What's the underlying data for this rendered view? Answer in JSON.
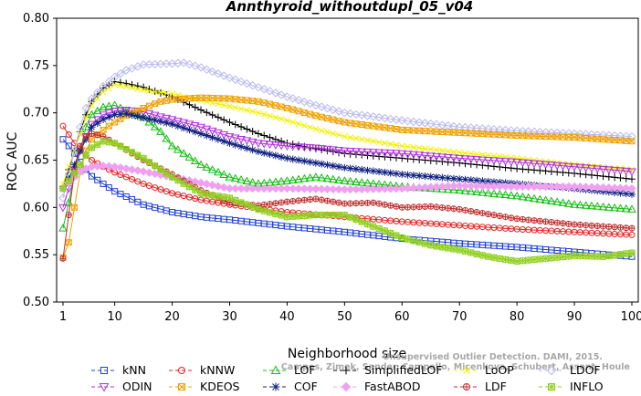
{
  "chart_data": {
    "type": "line",
    "title": "Annthyroid_withoutdupl_05_v04",
    "xlabel": "Neighborhood size",
    "ylabel": "ROC AUC",
    "xlim": [
      1,
      100
    ],
    "ylim": [
      0.5,
      0.8
    ],
    "xticks": [
      1,
      10,
      20,
      30,
      40,
      50,
      60,
      70,
      80,
      90,
      100
    ],
    "yticks": [
      "0.50",
      "0.55",
      "0.60",
      "0.65",
      "0.70",
      "0.75",
      "0.80"
    ],
    "grid": false,
    "legend_position": "bottom",
    "watermark": [
      "Unsupervised Outlier Detection. DAMI, 2015.",
      "Campos, Zimek, Sander, Campello, Micenkova, Schubert, Assent, Houle"
    ],
    "series": [
      {
        "name": "kNN",
        "color": "#1f3fd0",
        "marker": "square",
        "points": [
          [
            1,
            0.672
          ],
          [
            2,
            0.665
          ],
          [
            3,
            0.657
          ],
          [
            4,
            0.648
          ],
          [
            5,
            0.64
          ],
          [
            6,
            0.633
          ],
          [
            8,
            0.625
          ],
          [
            10,
            0.617
          ],
          [
            15,
            0.603
          ],
          [
            20,
            0.595
          ],
          [
            25,
            0.59
          ],
          [
            30,
            0.587
          ],
          [
            40,
            0.58
          ],
          [
            50,
            0.574
          ],
          [
            60,
            0.567
          ],
          [
            70,
            0.562
          ],
          [
            80,
            0.558
          ],
          [
            90,
            0.553
          ],
          [
            100,
            0.548
          ]
        ]
      },
      {
        "name": "kNNW",
        "color": "#e02020",
        "marker": "circle",
        "points": [
          [
            1,
            0.686
          ],
          [
            2,
            0.677
          ],
          [
            3,
            0.668
          ],
          [
            4,
            0.66
          ],
          [
            5,
            0.655
          ],
          [
            6,
            0.65
          ],
          [
            8,
            0.643
          ],
          [
            10,
            0.637
          ],
          [
            15,
            0.625
          ],
          [
            20,
            0.615
          ],
          [
            25,
            0.608
          ],
          [
            30,
            0.603
          ],
          [
            40,
            0.595
          ],
          [
            50,
            0.59
          ],
          [
            60,
            0.585
          ],
          [
            70,
            0.581
          ],
          [
            80,
            0.577
          ],
          [
            90,
            0.574
          ],
          [
            100,
            0.571
          ]
        ]
      },
      {
        "name": "LOF",
        "color": "#10c010",
        "marker": "triangle-up",
        "points": [
          [
            1,
            0.578
          ],
          [
            2,
            0.605
          ],
          [
            3,
            0.635
          ],
          [
            4,
            0.66
          ],
          [
            5,
            0.685
          ],
          [
            6,
            0.698
          ],
          [
            8,
            0.706
          ],
          [
            10,
            0.708
          ],
          [
            12,
            0.702
          ],
          [
            15,
            0.695
          ],
          [
            18,
            0.68
          ],
          [
            20,
            0.665
          ],
          [
            25,
            0.645
          ],
          [
            30,
            0.632
          ],
          [
            35,
            0.625
          ],
          [
            40,
            0.628
          ],
          [
            45,
            0.632
          ],
          [
            50,
            0.628
          ],
          [
            60,
            0.622
          ],
          [
            70,
            0.618
          ],
          [
            80,
            0.612
          ],
          [
            90,
            0.603
          ],
          [
            100,
            0.598
          ]
        ]
      },
      {
        "name": "SimplifiedLOF",
        "color": "#000000",
        "marker": "plus",
        "points": [
          [
            1,
            0.622
          ],
          [
            2,
            0.64
          ],
          [
            3,
            0.66
          ],
          [
            4,
            0.68
          ],
          [
            5,
            0.698
          ],
          [
            6,
            0.712
          ],
          [
            8,
            0.726
          ],
          [
            10,
            0.733
          ],
          [
            12,
            0.731
          ],
          [
            15,
            0.727
          ],
          [
            20,
            0.717
          ],
          [
            25,
            0.703
          ],
          [
            30,
            0.69
          ],
          [
            35,
            0.678
          ],
          [
            40,
            0.668
          ],
          [
            45,
            0.662
          ],
          [
            50,
            0.657
          ],
          [
            60,
            0.652
          ],
          [
            70,
            0.647
          ],
          [
            80,
            0.641
          ],
          [
            90,
            0.636
          ],
          [
            100,
            0.63
          ]
        ]
      },
      {
        "name": "LoOP",
        "color": "#f0f000",
        "marker": "x",
        "points": [
          [
            1,
            0.625
          ],
          [
            2,
            0.643
          ],
          [
            3,
            0.66
          ],
          [
            4,
            0.678
          ],
          [
            5,
            0.695
          ],
          [
            6,
            0.708
          ],
          [
            8,
            0.722
          ],
          [
            10,
            0.73
          ],
          [
            12,
            0.728
          ],
          [
            15,
            0.724
          ],
          [
            20,
            0.72
          ],
          [
            25,
            0.713
          ],
          [
            30,
            0.707
          ],
          [
            35,
            0.7
          ],
          [
            40,
            0.692
          ],
          [
            45,
            0.683
          ],
          [
            50,
            0.675
          ],
          [
            60,
            0.665
          ],
          [
            70,
            0.658
          ],
          [
            80,
            0.652
          ],
          [
            90,
            0.645
          ],
          [
            100,
            0.64
          ]
        ]
      },
      {
        "name": "LDOF",
        "color": "#b8b8f0",
        "marker": "diamond",
        "points": [
          [
            1,
            0.61
          ],
          [
            2,
            0.635
          ],
          [
            3,
            0.66
          ],
          [
            4,
            0.685
          ],
          [
            5,
            0.705
          ],
          [
            6,
            0.715
          ],
          [
            8,
            0.728
          ],
          [
            10,
            0.738
          ],
          [
            12,
            0.745
          ],
          [
            15,
            0.751
          ],
          [
            20,
            0.752
          ],
          [
            22,
            0.753
          ],
          [
            25,
            0.748
          ],
          [
            30,
            0.737
          ],
          [
            35,
            0.727
          ],
          [
            40,
            0.717
          ],
          [
            45,
            0.708
          ],
          [
            50,
            0.7
          ],
          [
            60,
            0.692
          ],
          [
            70,
            0.685
          ],
          [
            80,
            0.681
          ],
          [
            90,
            0.678
          ],
          [
            100,
            0.675
          ]
        ]
      },
      {
        "name": "ODIN",
        "color": "#b030e0",
        "marker": "triangle-down",
        "points": [
          [
            1,
            0.6
          ],
          [
            2,
            0.62
          ],
          [
            3,
            0.64
          ],
          [
            4,
            0.66
          ],
          [
            5,
            0.675
          ],
          [
            6,
            0.688
          ],
          [
            8,
            0.698
          ],
          [
            10,
            0.702
          ],
          [
            12,
            0.703
          ],
          [
            15,
            0.701
          ],
          [
            18,
            0.696
          ],
          [
            20,
            0.693
          ],
          [
            25,
            0.685
          ],
          [
            30,
            0.675
          ],
          [
            35,
            0.668
          ],
          [
            40,
            0.665
          ],
          [
            45,
            0.663
          ],
          [
            50,
            0.66
          ],
          [
            60,
            0.657
          ],
          [
            70,
            0.652
          ],
          [
            80,
            0.648
          ],
          [
            90,
            0.643
          ],
          [
            100,
            0.638
          ]
        ]
      },
      {
        "name": "KDEOS",
        "color": "#f0a000",
        "marker": "square-x",
        "points": [
          [
            1,
            0.547
          ],
          [
            2,
            0.563
          ],
          [
            3,
            0.6
          ],
          [
            4,
            0.638
          ],
          [
            5,
            0.66
          ],
          [
            6,
            0.672
          ],
          [
            8,
            0.682
          ],
          [
            10,
            0.69
          ],
          [
            12,
            0.697
          ],
          [
            15,
            0.705
          ],
          [
            18,
            0.712
          ],
          [
            20,
            0.714
          ],
          [
            25,
            0.716
          ],
          [
            30,
            0.715
          ],
          [
            35,
            0.712
          ],
          [
            40,
            0.705
          ],
          [
            45,
            0.697
          ],
          [
            50,
            0.69
          ],
          [
            60,
            0.682
          ],
          [
            70,
            0.679
          ],
          [
            80,
            0.676
          ],
          [
            90,
            0.674
          ],
          [
            100,
            0.67
          ]
        ]
      },
      {
        "name": "COF",
        "color": "#102080",
        "marker": "asterisk",
        "points": [
          [
            1,
            0.62
          ],
          [
            2,
            0.63
          ],
          [
            3,
            0.645
          ],
          [
            4,
            0.66
          ],
          [
            5,
            0.672
          ],
          [
            6,
            0.685
          ],
          [
            8,
            0.693
          ],
          [
            10,
            0.698
          ],
          [
            12,
            0.699
          ],
          [
            15,
            0.695
          ],
          [
            20,
            0.688
          ],
          [
            25,
            0.678
          ],
          [
            30,
            0.668
          ],
          [
            35,
            0.659
          ],
          [
            40,
            0.652
          ],
          [
            45,
            0.647
          ],
          [
            50,
            0.642
          ],
          [
            60,
            0.635
          ],
          [
            70,
            0.63
          ],
          [
            80,
            0.625
          ],
          [
            90,
            0.62
          ],
          [
            100,
            0.614
          ]
        ]
      },
      {
        "name": "FastABOD",
        "color": "#f0a0f0",
        "marker": "diamond-filled",
        "points": [
          [
            1,
            0.62
          ],
          [
            2,
            0.626
          ],
          [
            3,
            0.632
          ],
          [
            4,
            0.638
          ],
          [
            5,
            0.641
          ],
          [
            6,
            0.643
          ],
          [
            8,
            0.644
          ],
          [
            10,
            0.643
          ],
          [
            15,
            0.638
          ],
          [
            20,
            0.632
          ],
          [
            25,
            0.626
          ],
          [
            30,
            0.62
          ],
          [
            40,
            0.62
          ],
          [
            50,
            0.619
          ],
          [
            60,
            0.62
          ],
          [
            70,
            0.623
          ],
          [
            80,
            0.622
          ],
          [
            90,
            0.622
          ],
          [
            100,
            0.62
          ]
        ]
      },
      {
        "name": "LDF",
        "color": "#c03030",
        "marker": "circle-plus",
        "points": [
          [
            1,
            0.546
          ],
          [
            2,
            0.592
          ],
          [
            3,
            0.638
          ],
          [
            4,
            0.665
          ],
          [
            5,
            0.675
          ],
          [
            6,
            0.678
          ],
          [
            8,
            0.675
          ],
          [
            10,
            0.668
          ],
          [
            15,
            0.65
          ],
          [
            20,
            0.635
          ],
          [
            25,
            0.618
          ],
          [
            30,
            0.605
          ],
          [
            35,
            0.602
          ],
          [
            40,
            0.606
          ],
          [
            45,
            0.609
          ],
          [
            50,
            0.604
          ],
          [
            55,
            0.605
          ],
          [
            60,
            0.6
          ],
          [
            65,
            0.601
          ],
          [
            70,
            0.598
          ],
          [
            80,
            0.588
          ],
          [
            90,
            0.582
          ],
          [
            100,
            0.578
          ]
        ]
      },
      {
        "name": "INFLO",
        "color": "#90d020",
        "marker": "star-box",
        "points": [
          [
            1,
            0.62
          ],
          [
            2,
            0.628
          ],
          [
            3,
            0.636
          ],
          [
            4,
            0.645
          ],
          [
            5,
            0.655
          ],
          [
            6,
            0.663
          ],
          [
            8,
            0.67
          ],
          [
            10,
            0.668
          ],
          [
            15,
            0.652
          ],
          [
            20,
            0.632
          ],
          [
            25,
            0.615
          ],
          [
            30,
            0.61
          ],
          [
            35,
            0.598
          ],
          [
            40,
            0.59
          ],
          [
            45,
            0.592
          ],
          [
            50,
            0.592
          ],
          [
            55,
            0.58
          ],
          [
            60,
            0.568
          ],
          [
            65,
            0.56
          ],
          [
            70,
            0.555
          ],
          [
            75,
            0.548
          ],
          [
            80,
            0.543
          ],
          [
            85,
            0.546
          ],
          [
            90,
            0.549
          ],
          [
            95,
            0.548
          ],
          [
            100,
            0.552
          ]
        ]
      }
    ]
  }
}
